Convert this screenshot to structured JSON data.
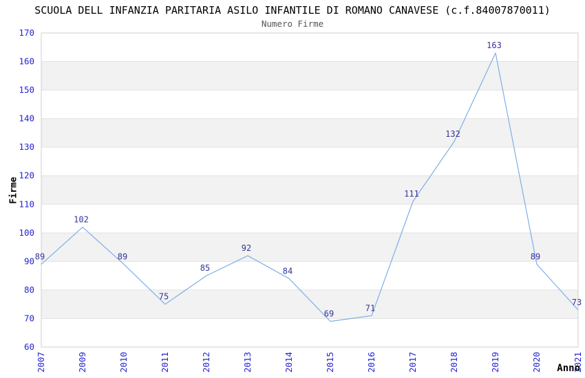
{
  "chart_data": {
    "type": "line",
    "title": "SCUOLA DELL INFANZIA PARITARIA ASILO INFANTILE DI ROMANO CANAVESE (c.f.84007870011)",
    "subtitle": "Numero Firme",
    "xlabel": "Anno",
    "ylabel": "Firme",
    "categories": [
      "2007",
      "2009",
      "2010",
      "2011",
      "2012",
      "2013",
      "2014",
      "2015",
      "2016",
      "2017",
      "2018",
      "2019",
      "2020",
      "2021"
    ],
    "values": [
      89,
      102,
      89,
      75,
      85,
      92,
      84,
      69,
      71,
      111,
      132,
      163,
      89,
      73
    ],
    "ylim": [
      60,
      170
    ],
    "ytick_step": 10,
    "grid": true,
    "alternating_bands": true,
    "legend_position": "none",
    "data_labels_shown": true,
    "colors": {
      "line": "#7daee6",
      "tick_label": "#2323d2",
      "data_label": "#333399",
      "band_fill": "#f2f2f2",
      "gridline": "#e2e2e2",
      "plot_border": "#cfcfcf",
      "title": "#000000",
      "subtitle": "#555555",
      "axis_title": "#000000",
      "background": "#ffffff"
    }
  }
}
